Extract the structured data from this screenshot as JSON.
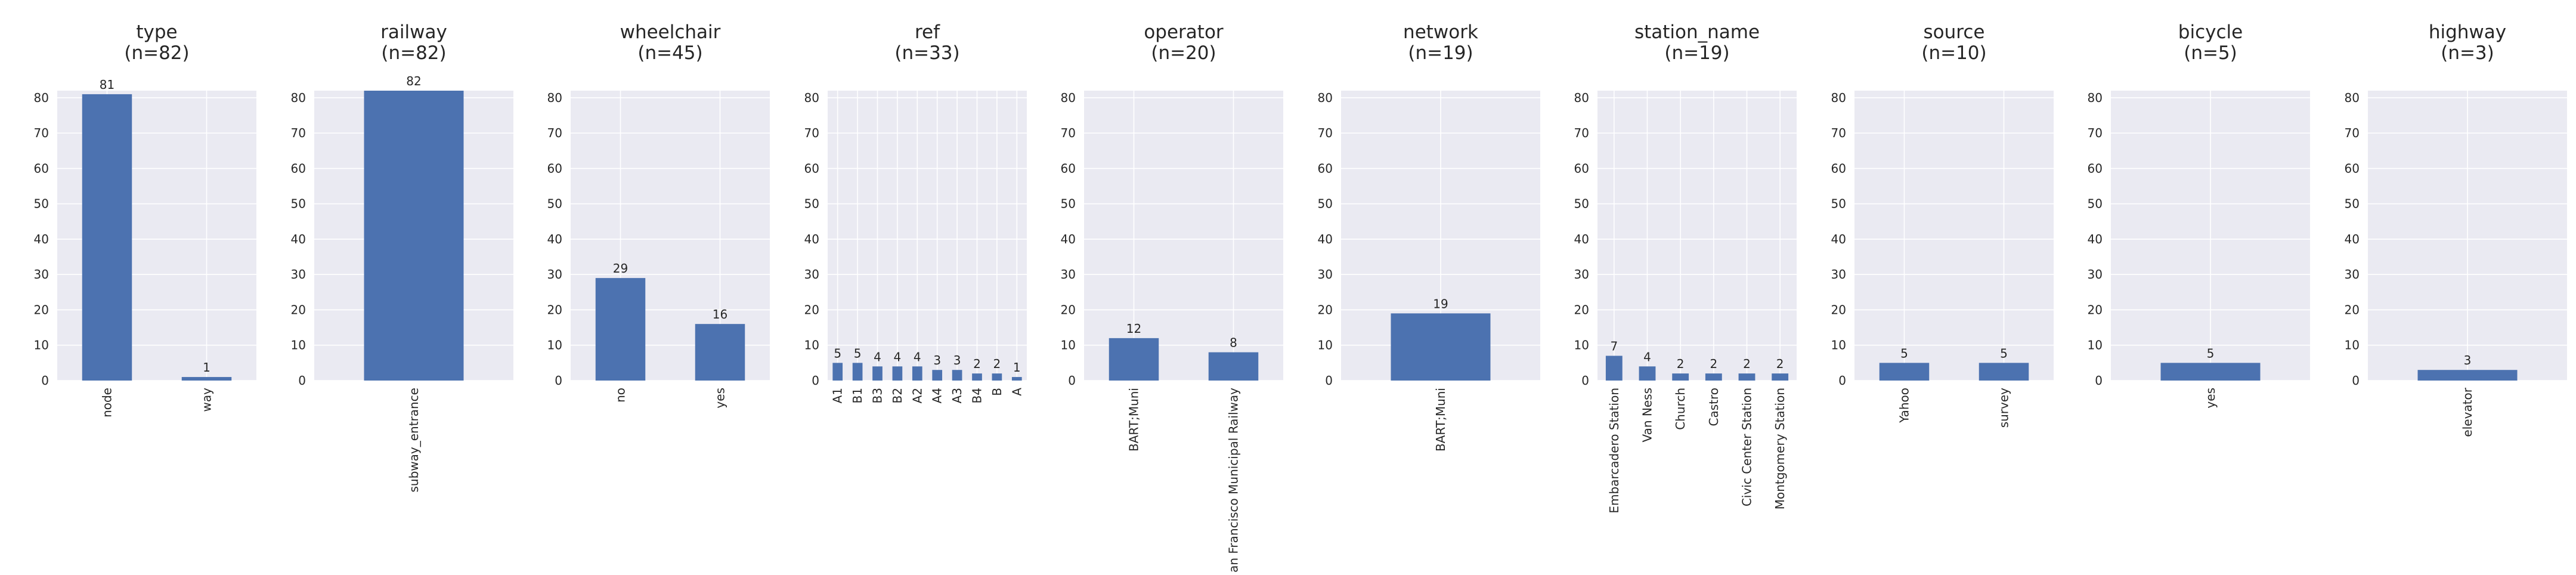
{
  "style": {
    "bar_color": "#4c72b0",
    "panel_bg": "#eaeaf2",
    "grid_color": "#ffffff",
    "text_color": "#262626"
  },
  "chart_data": [
    {
      "type": "bar",
      "title": "type\n(n=82)",
      "categories": [
        "node",
        "way"
      ],
      "values": [
        81,
        1
      ],
      "ylim": [
        0,
        82
      ],
      "yticks": [
        0,
        10,
        20,
        30,
        40,
        50,
        60,
        70,
        80
      ],
      "grid": true,
      "xlabel": "",
      "ylabel": ""
    },
    {
      "type": "bar",
      "title": "railway\n(n=82)",
      "categories": [
        "subway_entrance"
      ],
      "values": [
        82
      ],
      "ylim": [
        0,
        82
      ],
      "yticks": [
        0,
        10,
        20,
        30,
        40,
        50,
        60,
        70,
        80
      ],
      "grid": true,
      "xlabel": "",
      "ylabel": ""
    },
    {
      "type": "bar",
      "title": "wheelchair\n(n=45)",
      "categories": [
        "no",
        "yes"
      ],
      "values": [
        29,
        16
      ],
      "ylim": [
        0,
        82
      ],
      "yticks": [
        0,
        10,
        20,
        30,
        40,
        50,
        60,
        70,
        80
      ],
      "grid": true,
      "xlabel": "",
      "ylabel": ""
    },
    {
      "type": "bar",
      "title": "ref\n(n=33)",
      "categories": [
        "A1",
        "B1",
        "B3",
        "B2",
        "A2",
        "A4",
        "A3",
        "B4",
        "B",
        "A"
      ],
      "values": [
        5,
        5,
        4,
        4,
        4,
        3,
        3,
        2,
        2,
        1
      ],
      "ylim": [
        0,
        82
      ],
      "yticks": [
        0,
        10,
        20,
        30,
        40,
        50,
        60,
        70,
        80
      ],
      "grid": true,
      "xlabel": "",
      "ylabel": ""
    },
    {
      "type": "bar",
      "title": "operator\n(n=20)",
      "categories": [
        "BART;Muni",
        "San Francisco Municipal Railway"
      ],
      "values": [
        12,
        8
      ],
      "ylim": [
        0,
        82
      ],
      "yticks": [
        0,
        10,
        20,
        30,
        40,
        50,
        60,
        70,
        80
      ],
      "grid": true,
      "xlabel": "",
      "ylabel": ""
    },
    {
      "type": "bar",
      "title": "network\n(n=19)",
      "categories": [
        "BART;Muni"
      ],
      "values": [
        19
      ],
      "ylim": [
        0,
        82
      ],
      "yticks": [
        0,
        10,
        20,
        30,
        40,
        50,
        60,
        70,
        80
      ],
      "grid": true,
      "xlabel": "",
      "ylabel": ""
    },
    {
      "type": "bar",
      "title": "station_name\n(n=19)",
      "categories": [
        "Embarcadero Station",
        "Van Ness",
        "Church",
        "Castro",
        "Civic Center Station",
        "Montgomery Station"
      ],
      "values": [
        7,
        4,
        2,
        2,
        2,
        2
      ],
      "ylim": [
        0,
        82
      ],
      "yticks": [
        0,
        10,
        20,
        30,
        40,
        50,
        60,
        70,
        80
      ],
      "grid": true,
      "xlabel": "",
      "ylabel": ""
    },
    {
      "type": "bar",
      "title": "source\n(n=10)",
      "categories": [
        "Yahoo",
        "survey"
      ],
      "values": [
        5,
        5
      ],
      "ylim": [
        0,
        82
      ],
      "yticks": [
        0,
        10,
        20,
        30,
        40,
        50,
        60,
        70,
        80
      ],
      "grid": true,
      "xlabel": "",
      "ylabel": ""
    },
    {
      "type": "bar",
      "title": "bicycle\n(n=5)",
      "categories": [
        "yes"
      ],
      "values": [
        5
      ],
      "ylim": [
        0,
        82
      ],
      "yticks": [
        0,
        10,
        20,
        30,
        40,
        50,
        60,
        70,
        80
      ],
      "grid": true,
      "xlabel": "",
      "ylabel": ""
    },
    {
      "type": "bar",
      "title": "highway\n(n=3)",
      "categories": [
        "elevator"
      ],
      "values": [
        3
      ],
      "ylim": [
        0,
        82
      ],
      "yticks": [
        0,
        10,
        20,
        30,
        40,
        50,
        60,
        70,
        80
      ],
      "grid": true,
      "xlabel": "",
      "ylabel": ""
    }
  ]
}
